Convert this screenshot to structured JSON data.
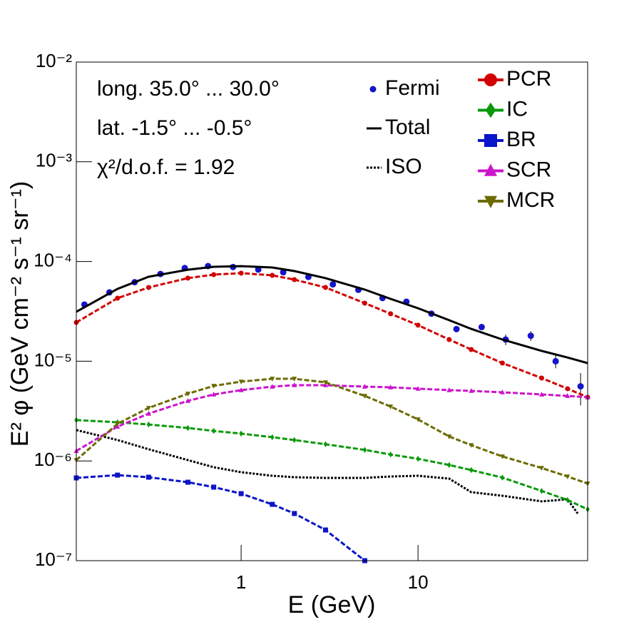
{
  "chart_data": {
    "type": "line",
    "xlabel": "E (GeV)",
    "ylabel": "E² φ (GeV cm⁻² s⁻¹ sr⁻¹)",
    "annotations": [
      "long. 35.0° ... 30.0°",
      "lat. -1.5° ... -0.5°",
      "χ²/d.o.f. = 1.92"
    ],
    "xscale": "log",
    "yscale": "log",
    "xlim": [
      0.117,
      91
    ],
    "ylim": [
      1e-07,
      0.01
    ],
    "xticks": [
      1,
      10
    ],
    "yticks": [
      {
        "value": 1e-07,
        "label": "10⁻⁷"
      },
      {
        "value": 1e-06,
        "label": "10⁻⁶"
      },
      {
        "value": 1e-05,
        "label": "10⁻⁵"
      },
      {
        "value": 0.0001,
        "label": "10⁻⁴"
      },
      {
        "value": 0.001,
        "label": "10⁻³"
      },
      {
        "value": 0.01,
        "label": "10⁻²"
      }
    ],
    "series": [
      {
        "name": "Fermi",
        "color": "#1414c8",
        "style": "points",
        "marker": "circle",
        "x": [
          0.13,
          0.18,
          0.25,
          0.35,
          0.48,
          0.65,
          0.9,
          1.25,
          1.73,
          2.4,
          3.3,
          4.6,
          6.3,
          8.6,
          11.9,
          16.5,
          22.9,
          31.3,
          43.4,
          60,
          83
        ],
        "values": [
          3.7e-05,
          4.9e-05,
          6.2e-05,
          7.5e-05,
          8.6e-05,
          9e-05,
          8.8e-05,
          8.3e-05,
          7.8e-05,
          7e-05,
          5.9e-05,
          5.2e-05,
          4.3e-05,
          3.95e-05,
          3e-05,
          2.1e-05,
          2.2e-05,
          1.65e-05,
          1.8e-05,
          1e-05,
          5.6e-06
        ],
        "errors": [
          1e-06,
          1e-06,
          1e-06,
          1e-06,
          1e-06,
          1e-06,
          1e-06,
          1e-06,
          1e-06,
          1e-06,
          1e-06,
          1e-06,
          1e-06,
          1e-06,
          1.5e-06,
          1e-06,
          1.5e-06,
          2e-06,
          2e-06,
          1.5e-06,
          2e-06
        ]
      },
      {
        "name": "Total",
        "color": "#000000",
        "style": "line",
        "x": [
          0.117,
          0.2,
          0.3,
          0.5,
          0.7,
          1,
          1.5,
          2,
          3,
          5,
          7,
          10,
          15,
          20,
          30,
          50,
          70,
          91
        ],
        "values": [
          3.13e-05,
          5.31e-05,
          7.03e-05,
          8.28e-05,
          8.85e-05,
          8.99e-05,
          8.71e-05,
          8.02e-05,
          6.81e-05,
          5.23e-05,
          4.22e-05,
          3.4e-05,
          2.58e-05,
          2.11e-05,
          1.65e-05,
          1.27e-05,
          1.09e-05,
          9.58e-06
        ]
      },
      {
        "name": "ISO",
        "color": "#000000",
        "style": "dotted",
        "x": [
          0.117,
          0.2,
          0.3,
          0.5,
          0.7,
          1,
          1.5,
          2,
          3,
          5,
          7,
          10,
          15,
          20,
          30,
          50,
          70,
          80
        ],
        "values": [
          2.04e-06,
          1.62e-06,
          1.31e-06,
          1.02e-06,
          8.65e-07,
          7.71e-07,
          7.1e-07,
          6.87e-07,
          6.76e-07,
          6.76e-07,
          6.98e-07,
          7.1e-07,
          6.65e-07,
          4.86e-07,
          4.48e-07,
          3.93e-07,
          4.12e-07,
          2.97e-07
        ]
      },
      {
        "name": "PCR",
        "color": "#d20000",
        "style": "dashed",
        "marker": "circle",
        "x": [
          0.117,
          0.2,
          0.3,
          0.5,
          0.7,
          1,
          1.5,
          2,
          3,
          5,
          7,
          10,
          15,
          20,
          30,
          50,
          70,
          91
        ],
        "values": [
          2.45e-05,
          4.29e-05,
          5.49e-05,
          6.81e-05,
          7.38e-05,
          7.64e-05,
          7.26e-05,
          6.58e-05,
          5.49e-05,
          3.82e-05,
          2.99e-05,
          2.3e-05,
          1.65e-05,
          1.31e-05,
          9.58e-06,
          6.78e-06,
          5.3e-06,
          4.35e-06
        ]
      },
      {
        "name": "IC",
        "color": "#0a9a0a",
        "style": "dashed",
        "marker": "diamond",
        "x": [
          0.117,
          0.2,
          0.3,
          0.5,
          0.7,
          1,
          1.5,
          2,
          3,
          5,
          7,
          10,
          15,
          20,
          30,
          50,
          70,
          91
        ],
        "values": [
          2.57e-06,
          2.44e-06,
          2.32e-06,
          2.14e-06,
          2e-06,
          1.88e-06,
          1.73e-06,
          1.62e-06,
          1.47e-06,
          1.29e-06,
          1.16e-06,
          1.05e-06,
          9.1e-07,
          8.1e-07,
          6.8e-07,
          5e-07,
          4.06e-07,
          3.27e-07
        ]
      },
      {
        "name": "BR",
        "color": "#0a14c8",
        "style": "dashed",
        "marker": "square",
        "x": [
          0.117,
          0.2,
          0.3,
          0.5,
          0.7,
          1,
          1.5,
          2,
          3,
          5
        ],
        "values": [
          6.76e-07,
          7.21e-07,
          6.87e-07,
          6.12e-07,
          5.46e-07,
          4.7e-07,
          3.67e-07,
          2.97e-07,
          2.03e-07,
          1e-07
        ]
      },
      {
        "name": "SCR",
        "color": "#cc14cc",
        "style": "dashed",
        "marker": "triangle",
        "x": [
          0.117,
          0.2,
          0.3,
          0.5,
          0.7,
          1,
          1.5,
          2,
          3,
          5,
          7,
          10,
          15,
          20,
          30,
          50,
          70,
          91
        ],
        "values": [
          1.26e-06,
          2.21e-06,
          2.98e-06,
          4e-06,
          4.64e-06,
          5.13e-06,
          5.56e-06,
          5.75e-06,
          5.75e-06,
          5.56e-06,
          5.47e-06,
          5.3e-06,
          5.13e-06,
          5.04e-06,
          4.88e-06,
          4.64e-06,
          4.49e-06,
          4.35e-06
        ]
      },
      {
        "name": "MCR",
        "color": "#6b6b00",
        "style": "dashed",
        "marker": "triangle-down",
        "x": [
          0.117,
          0.2,
          0.3,
          0.5,
          0.7,
          1,
          1.5,
          2,
          3,
          5,
          7,
          10,
          15,
          20,
          30,
          50,
          70,
          91
        ],
        "values": [
          1.02e-06,
          2.36e-06,
          3.4e-06,
          4.72e-06,
          5.66e-06,
          6.24e-06,
          6.67e-06,
          6.67e-06,
          6.14e-06,
          4.49e-06,
          3.51e-06,
          2.61e-06,
          1.76e-06,
          1.44e-06,
          1.11e-06,
          8.5e-07,
          6.98e-07,
          5.93e-07
        ]
      }
    ]
  }
}
